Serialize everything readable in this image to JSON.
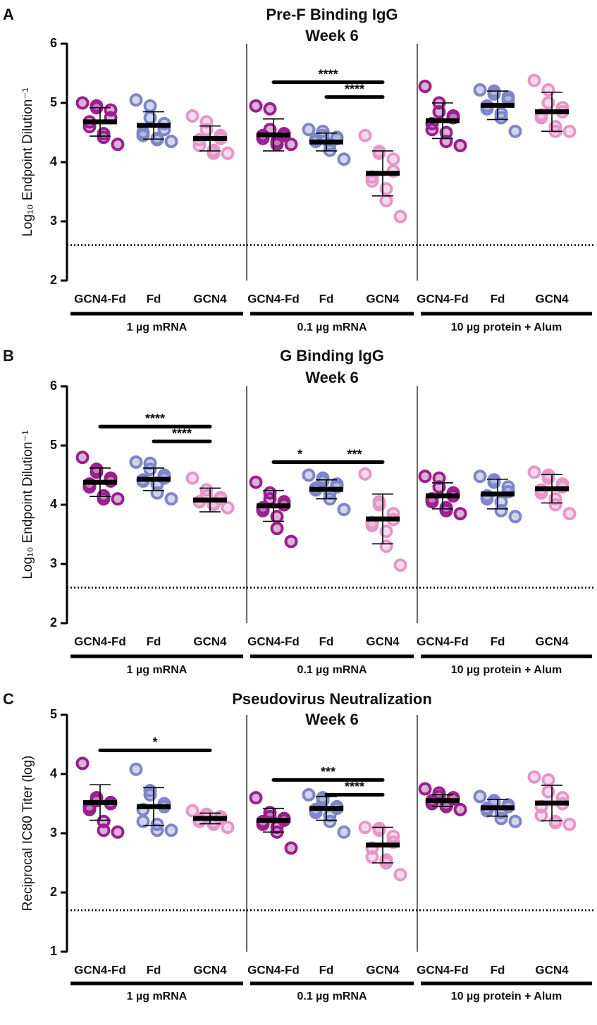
{
  "chart_data": [
    {
      "type": "dotplot",
      "panel_label": "A",
      "title": "Pre-F Binding IgG",
      "subtitle": "Week 6",
      "y_label": "Log₁₀ Endpoint Dilution⁻¹",
      "ylim": [
        2,
        6
      ],
      "yticks": [
        2,
        3,
        4,
        5,
        6
      ],
      "threshold": 2.6,
      "group_labels": [
        "1 µg mRNA",
        "0.1 µg mRNA",
        "10 µg protein + Alum"
      ],
      "groups": [
        {
          "name": "GCN4-Fd",
          "color": "#9b1f8c",
          "values": [
            5.0,
            4.95,
            4.92,
            4.88,
            4.75,
            4.68,
            4.6,
            4.48,
            4.42,
            4.3
          ],
          "mean": 4.68,
          "sd": 0.24
        },
        {
          "name": "Fd",
          "color": "#7f86c7",
          "values": [
            5.05,
            4.95,
            4.75,
            4.65,
            4.55,
            4.5,
            4.45,
            4.4,
            4.38,
            4.35
          ],
          "mean": 4.62,
          "sd": 0.23
        },
        {
          "name": "GCN4",
          "color": "#e597c8",
          "values": [
            4.78,
            4.68,
            4.55,
            4.45,
            4.4,
            4.38,
            4.28,
            4.2,
            4.15,
            4.15
          ],
          "mean": 4.4,
          "sd": 0.21
        },
        {
          "name": "GCN4-Fd",
          "color": "#9b1f8c",
          "values": [
            4.95,
            4.9,
            4.55,
            4.48,
            4.45,
            4.45,
            4.4,
            4.35,
            4.3,
            4.3
          ],
          "mean": 4.46,
          "sd": 0.27
        },
        {
          "name": "Fd",
          "color": "#7f86c7",
          "values": [
            4.55,
            4.52,
            4.45,
            4.42,
            4.4,
            4.38,
            4.35,
            4.3,
            4.2,
            4.05
          ],
          "mean": 4.34,
          "sd": 0.15
        },
        {
          "name": "GCN4",
          "color": "#e597c8",
          "values": [
            4.45,
            4.18,
            4.15,
            4.05,
            3.85,
            3.75,
            3.68,
            3.55,
            3.35,
            3.08
          ],
          "mean": 3.81,
          "sd": 0.38
        },
        {
          "name": "GCN4-Fd",
          "color": "#9b1f8c",
          "values": [
            5.28,
            5.0,
            4.85,
            4.78,
            4.75,
            4.65,
            4.55,
            4.5,
            4.35,
            4.28
          ],
          "mean": 4.7,
          "sd": 0.3
        },
        {
          "name": "Fd",
          "color": "#7f86c7",
          "values": [
            5.22,
            5.2,
            5.15,
            5.1,
            5.05,
            4.95,
            4.9,
            4.82,
            4.75,
            4.52
          ],
          "mean": 4.96,
          "sd": 0.24
        },
        {
          "name": "GCN4",
          "color": "#e597c8",
          "values": [
            5.38,
            5.22,
            5.0,
            4.92,
            4.85,
            4.8,
            4.75,
            4.6,
            4.52,
            4.52
          ],
          "mean": 4.85,
          "sd": 0.33
        }
      ],
      "comparisons": [
        {
          "from": 3,
          "to": 5,
          "label": "****",
          "y": 5.35
        },
        {
          "from": 4,
          "to": 5,
          "label": "****",
          "y": 5.1
        }
      ]
    },
    {
      "type": "dotplot",
      "panel_label": "B",
      "title": "G Binding IgG",
      "subtitle": "Week 6",
      "y_label": "Log₁₀ Endpoint Dilution⁻¹",
      "ylim": [
        2,
        6
      ],
      "yticks": [
        2,
        3,
        4,
        5,
        6
      ],
      "threshold": 2.6,
      "group_labels": [
        "1 µg mRNA",
        "0.1 µg mRNA",
        "10 µg protein + Alum"
      ],
      "groups": [
        {
          "name": "GCN4-Fd",
          "color": "#9b1f8c",
          "values": [
            4.8,
            4.6,
            4.55,
            4.45,
            4.4,
            4.35,
            4.3,
            4.15,
            4.1,
            4.1
          ],
          "mean": 4.38,
          "sd": 0.24
        },
        {
          "name": "Fd",
          "color": "#7f86c7",
          "values": [
            4.72,
            4.7,
            4.6,
            4.5,
            4.45,
            4.42,
            4.4,
            4.35,
            4.2,
            4.1
          ],
          "mean": 4.43,
          "sd": 0.19
        },
        {
          "name": "GCN4",
          "color": "#e597c8",
          "values": [
            4.45,
            4.25,
            4.15,
            4.12,
            4.1,
            4.05,
            4.05,
            4.02,
            4.0,
            3.95
          ],
          "mean": 4.08,
          "sd": 0.2
        },
        {
          "name": "GCN4-Fd",
          "color": "#9b1f8c",
          "values": [
            4.38,
            4.2,
            4.1,
            4.05,
            4.0,
            3.95,
            3.9,
            3.8,
            3.6,
            3.38
          ],
          "mean": 3.98,
          "sd": 0.26
        },
        {
          "name": "Fd",
          "color": "#7f86c7",
          "values": [
            4.5,
            4.45,
            4.4,
            4.35,
            4.3,
            4.28,
            4.25,
            4.2,
            4.1,
            3.92
          ],
          "mean": 4.26,
          "sd": 0.16
        },
        {
          "name": "GCN4",
          "color": "#e597c8",
          "values": [
            4.52,
            4.05,
            4.0,
            3.85,
            3.75,
            3.7,
            3.65,
            3.55,
            3.3,
            2.98
          ],
          "mean": 3.76,
          "sd": 0.42
        },
        {
          "name": "GCN4-Fd",
          "color": "#9b1f8c",
          "values": [
            4.48,
            4.45,
            4.3,
            4.2,
            4.15,
            4.1,
            4.05,
            3.95,
            3.9,
            3.85
          ],
          "mean": 4.15,
          "sd": 0.22
        },
        {
          "name": "Fd",
          "color": "#7f86c7",
          "values": [
            4.48,
            4.42,
            4.38,
            4.3,
            4.22,
            4.15,
            4.1,
            4.05,
            3.9,
            3.8
          ],
          "mean": 4.18,
          "sd": 0.25
        },
        {
          "name": "GCN4",
          "color": "#e597c8",
          "values": [
            4.55,
            4.5,
            4.45,
            4.35,
            4.3,
            4.25,
            4.2,
            4.1,
            4.0,
            3.85
          ],
          "mean": 4.27,
          "sd": 0.24
        }
      ],
      "comparisons": [
        {
          "from": 0,
          "to": 2,
          "label": "****",
          "y": 5.32
        },
        {
          "from": 1,
          "to": 2,
          "label": "****",
          "y": 5.07
        },
        {
          "from": 3,
          "to": 4,
          "label": "*",
          "y": 4.72
        },
        {
          "from": 4,
          "to": 5,
          "label": "***",
          "y": 4.72
        }
      ]
    },
    {
      "type": "dotplot",
      "panel_label": "C",
      "title": "Pseudovirus Neutralization",
      "subtitle": "Week 6",
      "y_label": "Reciprocal IC80 Titer (log)",
      "ylim": [
        1,
        5
      ],
      "yticks": [
        1,
        2,
        3,
        4,
        5
      ],
      "threshold": 1.7,
      "group_labels": [
        "1 µg mRNA",
        "0.1 µg mRNA",
        "10 µg protein + Alum"
      ],
      "groups": [
        {
          "name": "GCN4-Fd",
          "color": "#9b1f8c",
          "values": [
            4.18,
            3.6,
            3.55,
            3.52,
            3.5,
            3.45,
            3.4,
            3.2,
            3.05,
            3.02
          ],
          "mean": 3.52,
          "sd": 0.3
        },
        {
          "name": "Fd",
          "color": "#7f86c7",
          "values": [
            4.08,
            3.72,
            3.65,
            3.5,
            3.45,
            3.4,
            3.2,
            3.15,
            3.05,
            3.05
          ],
          "mean": 3.45,
          "sd": 0.32
        },
        {
          "name": "GCN4",
          "color": "#e597c8",
          "values": [
            3.38,
            3.32,
            3.3,
            3.28,
            3.25,
            3.22,
            3.2,
            3.18,
            3.15,
            3.1
          ],
          "mean": 3.25,
          "sd": 0.09
        },
        {
          "name": "GCN4-Fd",
          "color": "#9b1f8c",
          "values": [
            3.6,
            3.35,
            3.28,
            3.25,
            3.22,
            3.2,
            3.15,
            3.1,
            3.02,
            2.75
          ],
          "mean": 3.22,
          "sd": 0.2
        },
        {
          "name": "Fd",
          "color": "#7f86c7",
          "values": [
            3.65,
            3.6,
            3.55,
            3.45,
            3.42,
            3.4,
            3.35,
            3.3,
            3.2,
            3.02
          ],
          "mean": 3.42,
          "sd": 0.2
        },
        {
          "name": "GCN4",
          "color": "#e597c8",
          "values": [
            3.1,
            3.08,
            3.05,
            2.95,
            2.85,
            2.75,
            2.6,
            2.55,
            2.5,
            2.3
          ],
          "mean": 2.8,
          "sd": 0.3
        },
        {
          "name": "GCN4-Fd",
          "color": "#9b1f8c",
          "values": [
            3.75,
            3.68,
            3.62,
            3.6,
            3.58,
            3.55,
            3.5,
            3.48,
            3.45,
            3.4
          ],
          "mean": 3.55,
          "sd": 0.1
        },
        {
          "name": "Fd",
          "color": "#7f86c7",
          "values": [
            3.62,
            3.55,
            3.52,
            3.48,
            3.45,
            3.42,
            3.38,
            3.35,
            3.25,
            3.2
          ],
          "mean": 3.43,
          "sd": 0.14
        },
        {
          "name": "GCN4",
          "color": "#e597c8",
          "values": [
            3.95,
            3.9,
            3.7,
            3.6,
            3.5,
            3.45,
            3.3,
            3.2,
            3.18,
            3.15
          ],
          "mean": 3.51,
          "sd": 0.3
        }
      ],
      "comparisons": [
        {
          "from": 0,
          "to": 2,
          "label": "*",
          "y": 4.4
        },
        {
          "from": 3,
          "to": 5,
          "label": "***",
          "y": 3.9
        },
        {
          "from": 4,
          "to": 5,
          "label": "****",
          "y": 3.65
        }
      ]
    }
  ]
}
